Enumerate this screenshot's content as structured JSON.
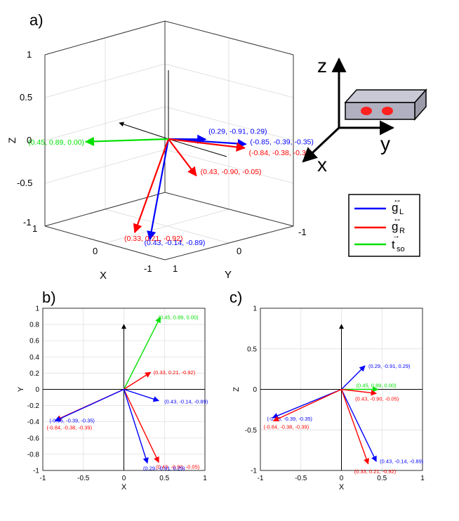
{
  "panel_labels": {
    "a": "a)",
    "b": "b)",
    "c": "c)"
  },
  "legend": [
    {
      "label": "g",
      "sub": "L",
      "color": "#0000ff"
    },
    {
      "label": "g",
      "sub": "R",
      "color": "#ff0000"
    },
    {
      "label": "t",
      "sub": "so",
      "color": "#00e000"
    }
  ],
  "device_axes": {
    "z": "z",
    "y": "y",
    "x": "x"
  },
  "colors": {
    "blue": "#0000ff",
    "red": "#ff0000",
    "green": "#00e000",
    "device_fill": "#b0b0c0",
    "dots": "#ff2020"
  },
  "chart_data": [
    {
      "id": "a",
      "type": "scatter",
      "projection": "3d",
      "xlabel": "X",
      "ylabel": "Y",
      "zlabel": "Z",
      "xlim": [
        -1,
        1
      ],
      "ylim": [
        -1,
        1
      ],
      "zlim": [
        -1,
        1
      ],
      "z_ticks": [
        "1",
        "0.5",
        "0",
        "-0.5",
        "-1"
      ],
      "x_ticks": [
        "1",
        "0",
        "-1"
      ],
      "y_ticks": [
        "1",
        "0",
        "-1"
      ],
      "series": [
        {
          "name": "gL",
          "color": "#0000ff",
          "vectors": [
            {
              "x": 0.29,
              "y": -0.91,
              "z": 0.29,
              "label": "(0.29, -0.91, 0.29)"
            },
            {
              "x": -0.85,
              "y": -0.39,
              "z": -0.35,
              "label": "(-0.85, -0.39, -0.35)"
            },
            {
              "x": 0.43,
              "y": -0.14,
              "z": -0.89,
              "label": "(0.43, -0.14, -0.89)"
            }
          ]
        },
        {
          "name": "gR",
          "color": "#ff0000",
          "vectors": [
            {
              "x": 0.43,
              "y": -0.9,
              "z": -0.05,
              "label": "(0.43, -0.90, -0.05)"
            },
            {
              "x": -0.84,
              "y": -0.38,
              "z": -0.39,
              "label": "(-0.84, -0.38, -0.39)"
            },
            {
              "x": 0.33,
              "y": 0.21,
              "z": -0.92,
              "label": "(0.33, 0.21, -0.92)"
            }
          ]
        },
        {
          "name": "tso",
          "color": "#00e000",
          "vectors": [
            {
              "x": 0.45,
              "y": 0.89,
              "z": 0.0,
              "label": "(0.45, 0.89, 0.00)"
            }
          ]
        }
      ]
    },
    {
      "id": "b",
      "type": "scatter",
      "xlabel": "X",
      "ylabel": "Y",
      "xlim": [
        -1,
        1
      ],
      "ylim": [
        -1,
        1
      ],
      "x_ticks": [
        -1,
        -0.5,
        0,
        0.5,
        1
      ],
      "y_ticks": [
        1,
        0.8,
        0.6,
        0.4,
        0.2,
        0,
        -0.2,
        -0.4,
        -0.6,
        -0.8,
        -1
      ],
      "series": [
        {
          "name": "tso",
          "color": "#00e000",
          "vectors": [
            {
              "x": 0.45,
              "y": 0.89,
              "label": "(0.45, 0.89, 0.00)"
            }
          ]
        },
        {
          "name": "gR",
          "color": "#ff0000",
          "vectors": [
            {
              "x": 0.33,
              "y": 0.21,
              "label": "(0.33, 0.21, -0.92)"
            },
            {
              "x": -0.84,
              "y": -0.38,
              "label": "(-0.84, -0.38, -0.39)"
            },
            {
              "x": 0.43,
              "y": -0.9,
              "label": "(0.43, -0.90, -0.05)"
            }
          ]
        },
        {
          "name": "gL",
          "color": "#0000ff",
          "vectors": [
            {
              "x": 0.43,
              "y": -0.14,
              "label": "(0.43, -0.14, -0.89)"
            },
            {
              "x": -0.85,
              "y": -0.39,
              "label": "(-0.85, -0.39, -0.35)"
            },
            {
              "x": 0.29,
              "y": -0.91,
              "label": "(0.29, -0.91, 0.29)"
            }
          ]
        }
      ]
    },
    {
      "id": "c",
      "type": "scatter",
      "xlabel": "X",
      "ylabel": "Z",
      "xlim": [
        -1,
        1
      ],
      "ylim": [
        -1,
        1
      ],
      "x_ticks": [
        -1,
        -0.5,
        0,
        0.5,
        1
      ],
      "y_ticks": [
        1,
        0.5,
        0,
        -0.5,
        -1
      ],
      "series": [
        {
          "name": "gL",
          "color": "#0000ff",
          "vectors": [
            {
              "x": 0.29,
              "y": 0.29,
              "label": "(0.29, -0.91, 0.29)"
            },
            {
              "x": -0.85,
              "y": -0.35,
              "label": "(-0.85, -0.39, -0.35)"
            },
            {
              "x": 0.43,
              "y": -0.89,
              "label": "(0.43, -0.14, -0.89)"
            }
          ]
        },
        {
          "name": "tso",
          "color": "#00e000",
          "vectors": [
            {
              "x": 0.45,
              "y": 0.0,
              "label": "(0.45, 0.89, 0.00)"
            }
          ]
        },
        {
          "name": "gR",
          "color": "#ff0000",
          "vectors": [
            {
              "x": 0.43,
              "y": -0.05,
              "label": "(0.43, -0.90, -0.05)"
            },
            {
              "x": -0.84,
              "y": -0.39,
              "label": "(-0.84, -0.38, -0.39)"
            },
            {
              "x": 0.33,
              "y": -0.92,
              "label": "(0.33, 0.21, -0.92)"
            }
          ]
        }
      ]
    }
  ]
}
